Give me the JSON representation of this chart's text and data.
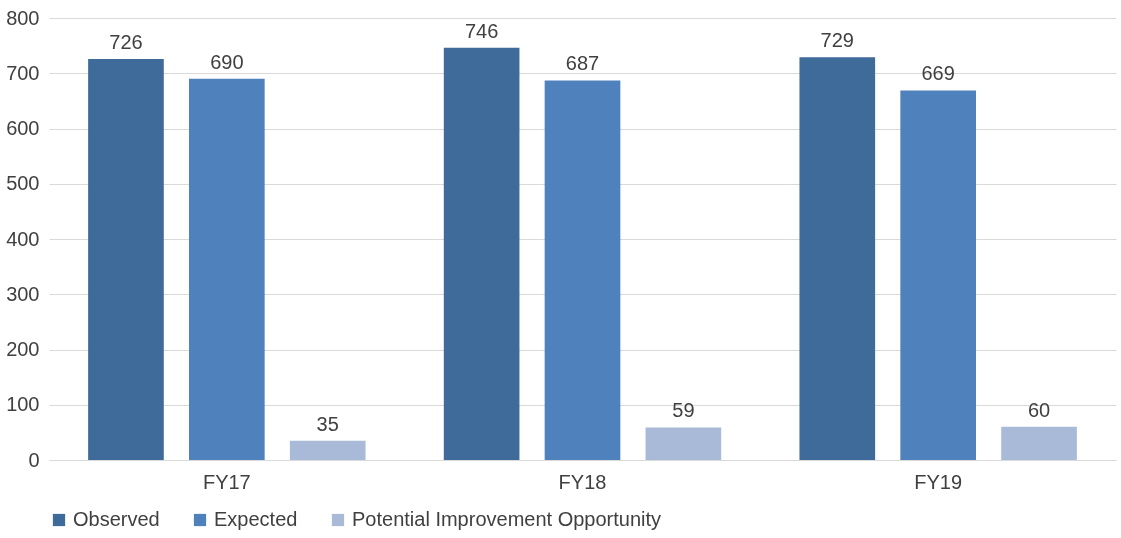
{
  "chart_data": {
    "type": "bar",
    "categories": [
      "FY17",
      "FY18",
      "FY19"
    ],
    "series": [
      {
        "name": "Observed",
        "color": "#3f6b9b",
        "values": [
          726,
          746,
          729
        ]
      },
      {
        "name": "Expected",
        "color": "#4f81bd",
        "values": [
          690,
          687,
          669
        ]
      },
      {
        "name": "Potential Improvement Opportunity",
        "color": "#a9bad8",
        "values": [
          35,
          59,
          60
        ]
      }
    ],
    "ylim": [
      0,
      800
    ],
    "yticks": [
      0,
      100,
      200,
      300,
      400,
      500,
      600,
      700,
      800
    ],
    "grid": "y",
    "legend": "bottom",
    "data_labels": true
  }
}
